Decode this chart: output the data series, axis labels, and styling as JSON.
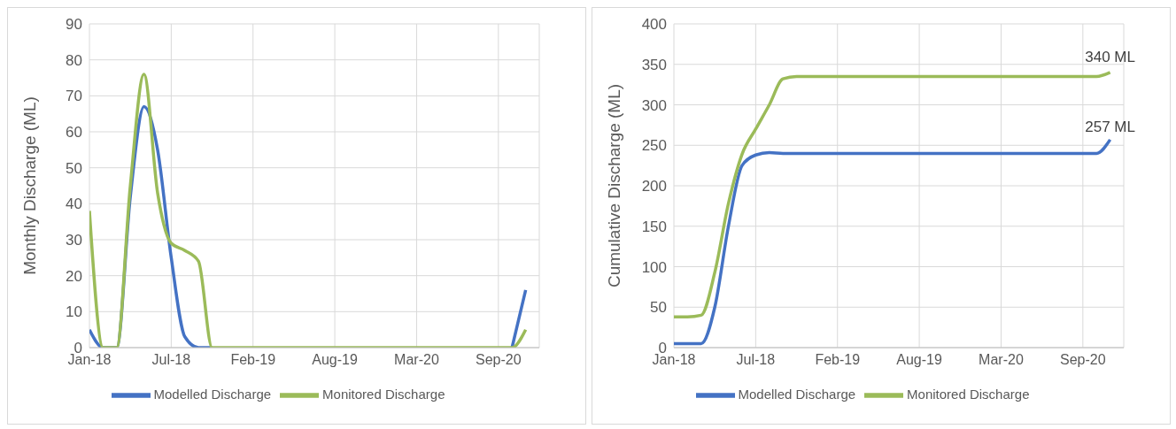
{
  "chart_data": [
    {
      "type": "line",
      "ylabel": "Monthly Discharge (ML)",
      "categories": [
        "Jan-18",
        null,
        null,
        null,
        null,
        null,
        "Jul-18",
        null,
        null,
        null,
        null,
        null,
        "Feb-19",
        null,
        null,
        null,
        null,
        null,
        "Aug-19",
        null,
        null,
        null,
        null,
        null,
        "Mar-20",
        null,
        null,
        null,
        null,
        null,
        "Sep-20",
        null,
        null
      ],
      "series": [
        {
          "name": "Modelled Discharge",
          "color": "#4472c4",
          "values": [
            5,
            0,
            0,
            42,
            67,
            55,
            25,
            3,
            0,
            0,
            null,
            null,
            null,
            null,
            null,
            null,
            null,
            null,
            null,
            null,
            null,
            null,
            null,
            null,
            null,
            null,
            null,
            null,
            null,
            null,
            null,
            0,
            16
          ]
        },
        {
          "name": "Monitored Discharge",
          "color": "#9bbb59",
          "values": [
            38,
            0,
            0,
            45,
            76,
            43,
            29,
            27,
            24,
            0,
            0,
            0,
            0,
            0,
            0,
            0,
            0,
            0,
            0,
            0,
            0,
            0,
            0,
            0,
            0,
            0,
            0,
            0,
            0,
            0,
            0,
            0,
            5
          ]
        }
      ],
      "ylim": [
        0,
        90
      ],
      "yticks": [
        0,
        10,
        20,
        30,
        40,
        50,
        60,
        70,
        80,
        90
      ],
      "grid": true,
      "legend": "bottom",
      "marker": "none"
    },
    {
      "type": "line",
      "ylabel": "Cumulative Discharge (ML)",
      "categories": [
        "Jan-18",
        null,
        null,
        null,
        null,
        null,
        "Jul-18",
        null,
        null,
        null,
        null,
        null,
        "Feb-19",
        null,
        null,
        null,
        null,
        null,
        "Aug-19",
        null,
        null,
        null,
        null,
        null,
        "Mar-20",
        null,
        null,
        null,
        null,
        null,
        "Sep-20",
        null,
        null
      ],
      "series": [
        {
          "name": "Modelled Discharge",
          "color": "#4472c4",
          "values": [
            5,
            5,
            5,
            50,
            150,
            225,
            238,
            241,
            240,
            240,
            240,
            240,
            240,
            240,
            240,
            240,
            240,
            240,
            240,
            240,
            240,
            240,
            240,
            240,
            240,
            240,
            240,
            240,
            240,
            240,
            240,
            240,
            257
          ]
        },
        {
          "name": "Monitored Discharge",
          "color": "#9bbb59",
          "values": [
            38,
            38,
            40,
            93,
            178,
            239,
            270,
            300,
            332,
            335,
            335,
            335,
            335,
            335,
            335,
            335,
            335,
            335,
            335,
            335,
            335,
            335,
            335,
            335,
            335,
            335,
            335,
            335,
            335,
            335,
            335,
            335,
            340
          ]
        }
      ],
      "ylim": [
        0,
        400
      ],
      "yticks": [
        0,
        50,
        100,
        150,
        200,
        250,
        300,
        350,
        400
      ],
      "grid": true,
      "legend": "bottom",
      "marker": "none",
      "annotations": [
        {
          "text": "340 ML",
          "y": 340
        },
        {
          "text": "257 ML",
          "y": 257
        }
      ]
    }
  ]
}
